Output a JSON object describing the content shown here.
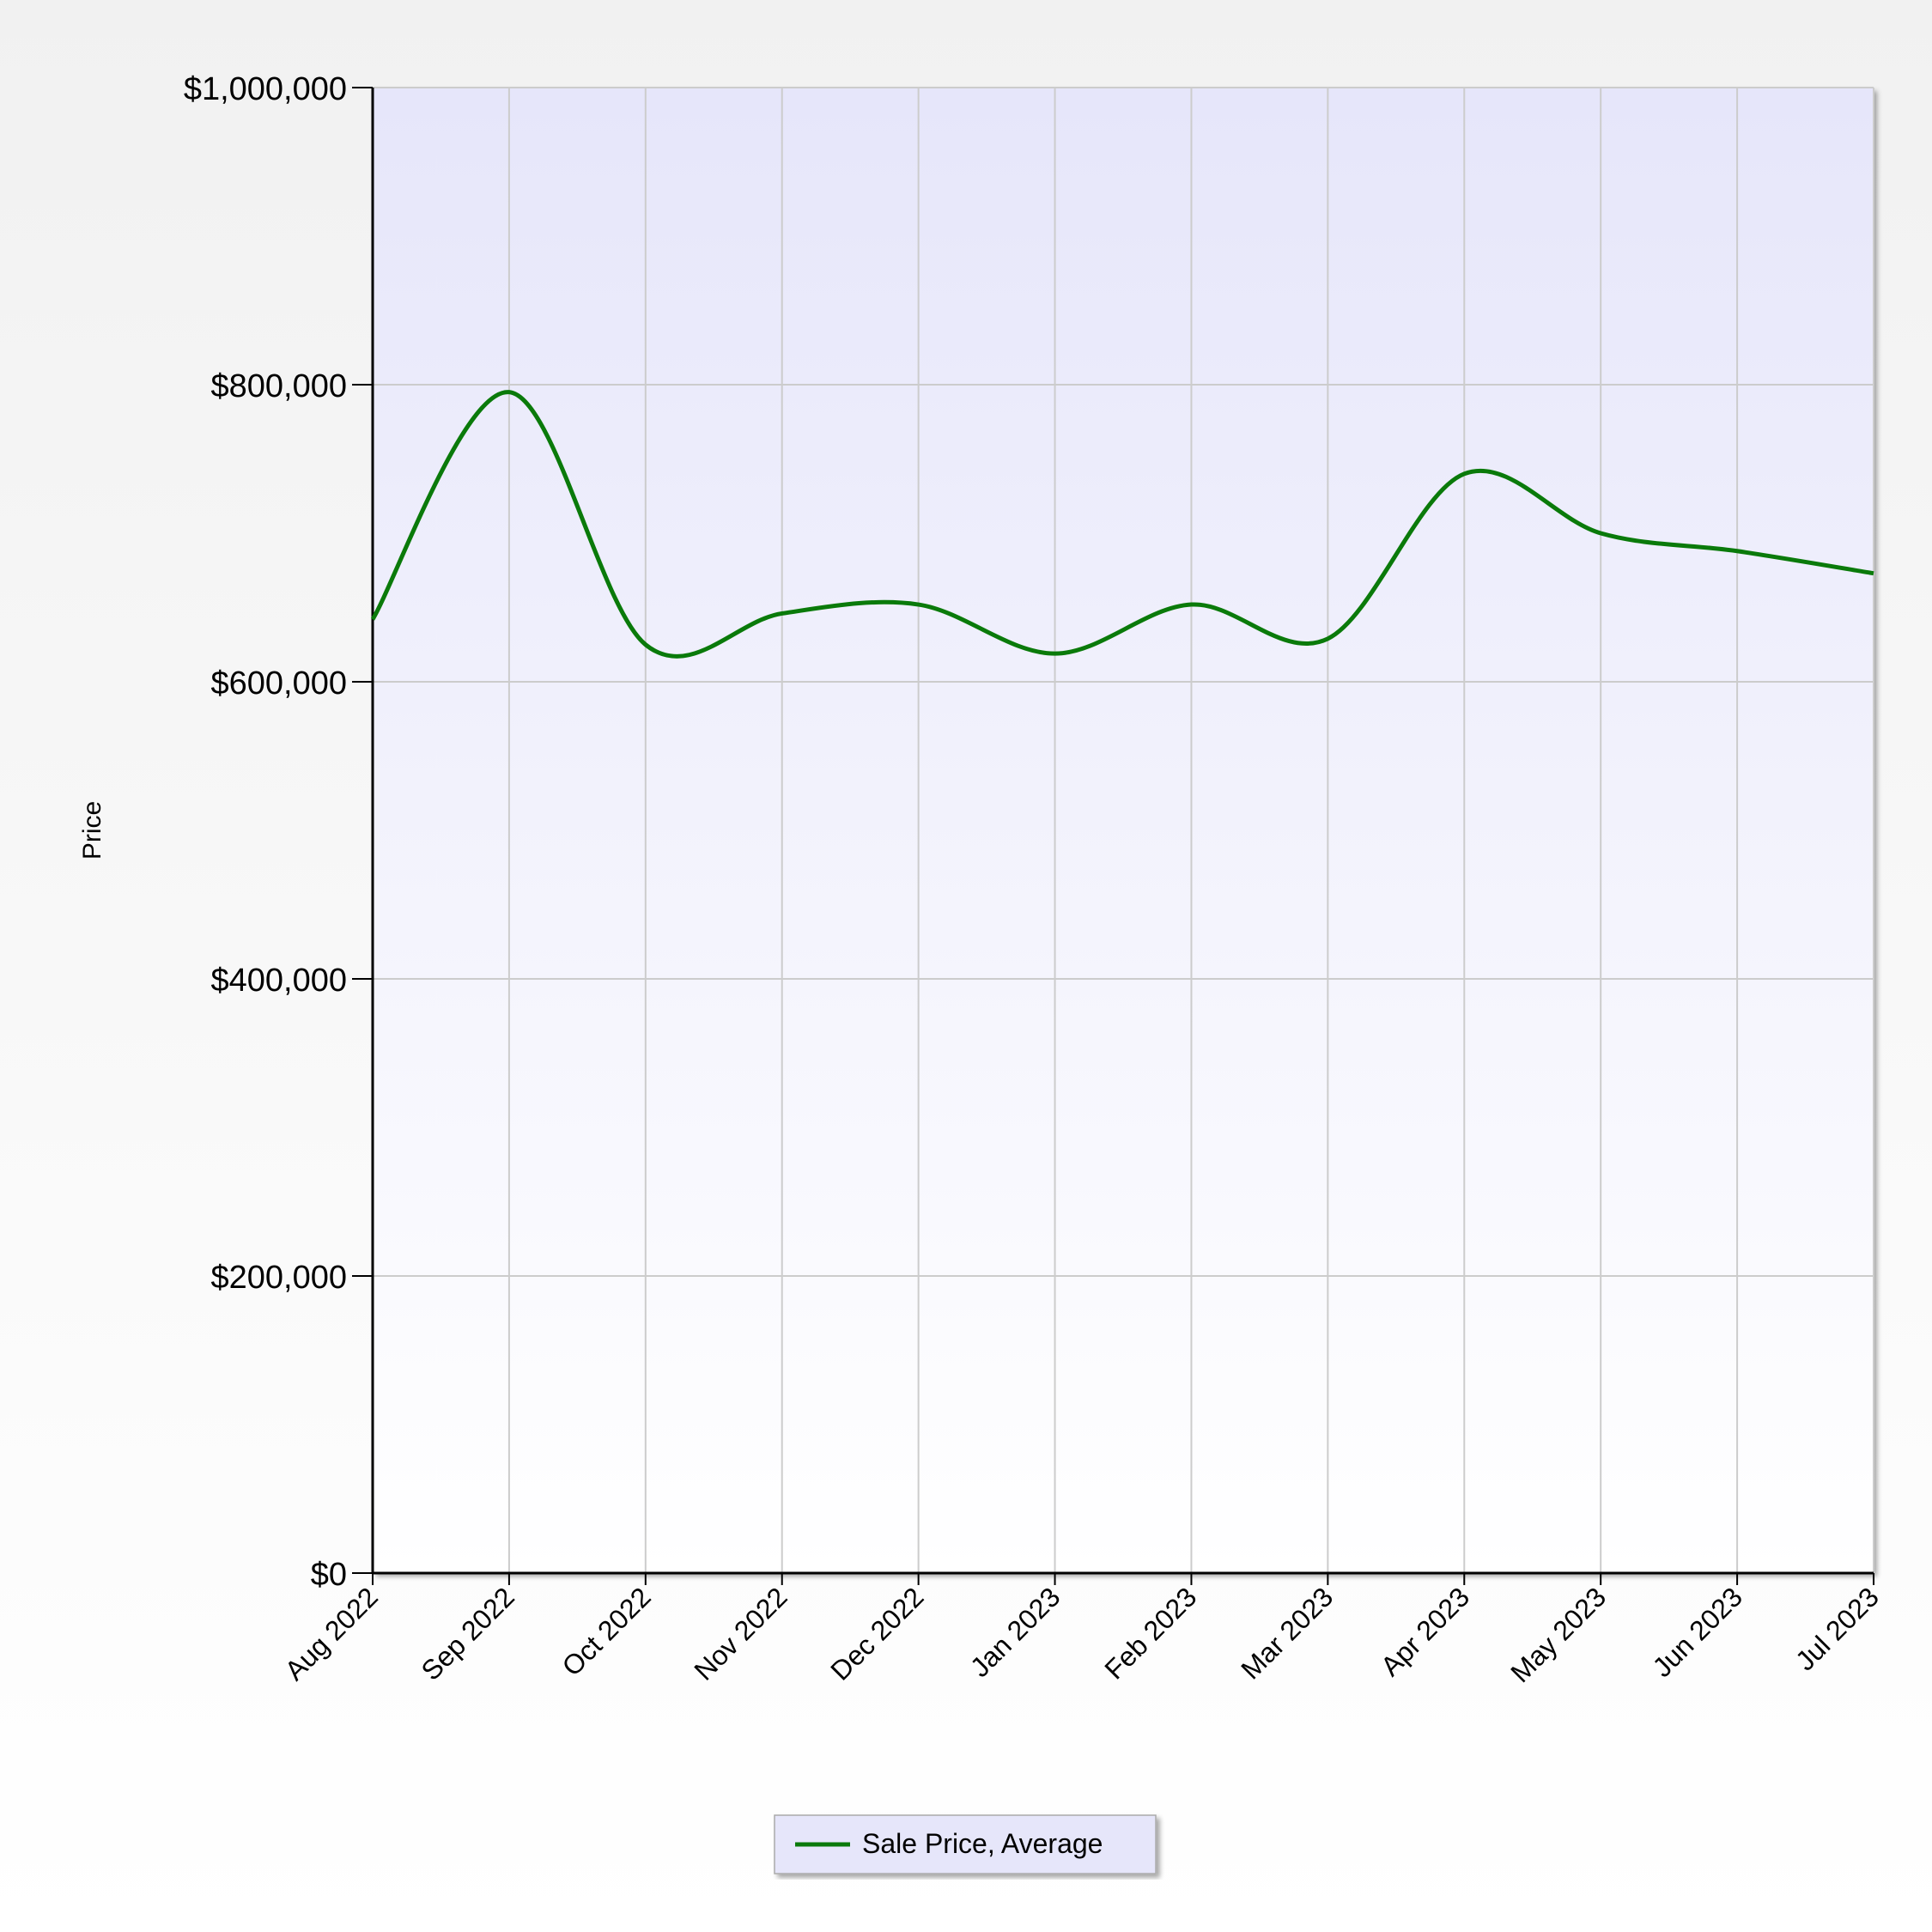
{
  "chart_data": {
    "type": "line",
    "title": "",
    "xlabel": "",
    "ylabel": "Price",
    "ylim": [
      0,
      1000000
    ],
    "yticks": [
      {
        "value": 0,
        "label": "$0"
      },
      {
        "value": 200000,
        "label": "$200,000"
      },
      {
        "value": 400000,
        "label": "$400,000"
      },
      {
        "value": 600000,
        "label": "$600,000"
      },
      {
        "value": 800000,
        "label": "$800,000"
      },
      {
        "value": 1000000,
        "label": "$1,000,000"
      }
    ],
    "categories": [
      "Aug 2022",
      "Sep 2022",
      "Oct 2022",
      "Nov 2022",
      "Dec 2022",
      "Jan 2023",
      "Feb 2023",
      "Mar 2023",
      "Apr 2023",
      "May 2023",
      "Jun 2023",
      "Jul 2023"
    ],
    "series": [
      {
        "name": "Sale Price, Average",
        "color": "#0a7a0a",
        "values": [
          642000,
          795000,
          625000,
          646000,
          652000,
          619000,
          652000,
          629000,
          740000,
          700000,
          688000,
          673000
        ]
      }
    ],
    "grid": true,
    "smooth": true,
    "plot_background": [
      "#e6e6fa",
      "#ffffff"
    ],
    "legend": {
      "position": "bottom-center",
      "background": "#e6e6fa"
    }
  }
}
